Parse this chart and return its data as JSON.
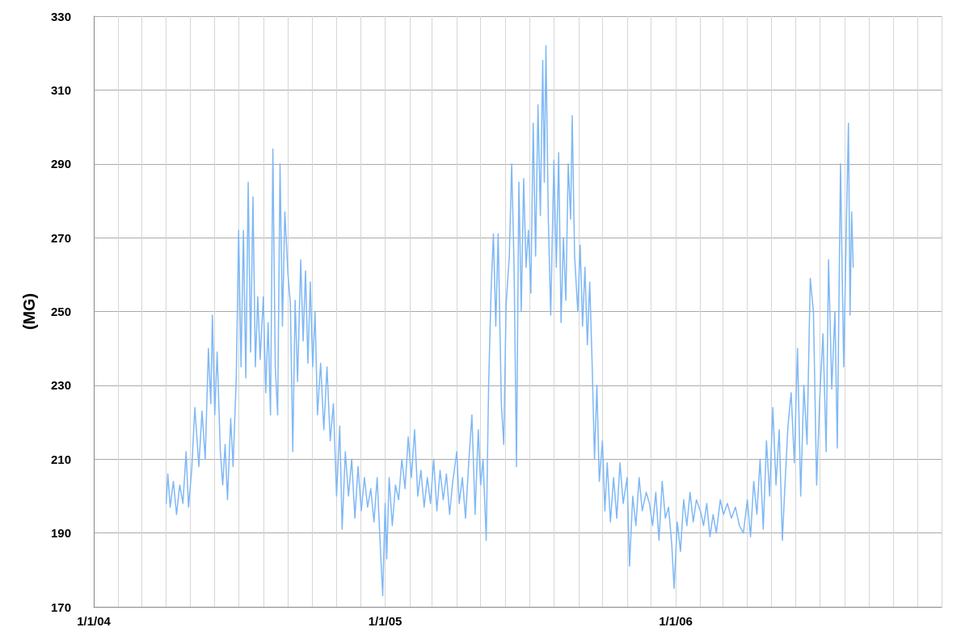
{
  "chart_data": {
    "type": "line",
    "ylabel": "(MG)",
    "marker": "none",
    "line_style": "solid",
    "grid": true,
    "xlim": [
      "2004-01-01",
      "2006-12-01"
    ],
    "xticks": [
      {
        "value": "2004-01-01",
        "label": "1/1/04"
      },
      {
        "value": "2004-02-01",
        "label": null
      },
      {
        "value": "2004-03-01",
        "label": null
      },
      {
        "value": "2004-04-01",
        "label": null
      },
      {
        "value": "2004-05-01",
        "label": null
      },
      {
        "value": "2004-06-01",
        "label": null
      },
      {
        "value": "2004-07-01",
        "label": null
      },
      {
        "value": "2004-08-01",
        "label": null
      },
      {
        "value": "2004-09-01",
        "label": null
      },
      {
        "value": "2004-10-01",
        "label": null
      },
      {
        "value": "2004-11-01",
        "label": null
      },
      {
        "value": "2004-12-01",
        "label": null
      },
      {
        "value": "2005-01-01",
        "label": "1/1/05"
      },
      {
        "value": "2005-02-01",
        "label": null
      },
      {
        "value": "2005-03-01",
        "label": null
      },
      {
        "value": "2005-04-01",
        "label": null
      },
      {
        "value": "2005-05-01",
        "label": null
      },
      {
        "value": "2005-06-01",
        "label": null
      },
      {
        "value": "2005-07-01",
        "label": null
      },
      {
        "value": "2005-08-01",
        "label": null
      },
      {
        "value": "2005-09-01",
        "label": null
      },
      {
        "value": "2005-10-01",
        "label": null
      },
      {
        "value": "2005-11-01",
        "label": null
      },
      {
        "value": "2005-12-01",
        "label": null
      },
      {
        "value": "2006-01-01",
        "label": "1/1/06"
      },
      {
        "value": "2006-02-01",
        "label": null
      },
      {
        "value": "2006-03-01",
        "label": null
      },
      {
        "value": "2006-04-01",
        "label": null
      },
      {
        "value": "2006-05-01",
        "label": null
      },
      {
        "value": "2006-06-01",
        "label": null
      },
      {
        "value": "2006-07-01",
        "label": null
      },
      {
        "value": "2006-08-01",
        "label": null
      },
      {
        "value": "2006-09-01",
        "label": null
      },
      {
        "value": "2006-10-01",
        "label": null
      },
      {
        "value": "2006-11-01",
        "label": null
      },
      {
        "value": "2006-12-01",
        "label": null
      }
    ],
    "ylim": [
      170,
      330
    ],
    "yticks": [
      170,
      190,
      210,
      230,
      250,
      270,
      290,
      310,
      330
    ],
    "series": [
      {
        "color": "#7fb8f5",
        "x": [
          "2004-04-01",
          "2004-04-03",
          "2004-04-06",
          "2004-04-10",
          "2004-04-14",
          "2004-04-18",
          "2004-04-22",
          "2004-04-26",
          "2004-04-29",
          "2004-05-03",
          "2004-05-07",
          "2004-05-12",
          "2004-05-16",
          "2004-05-20",
          "2004-05-24",
          "2004-05-27",
          "2004-05-29",
          "2004-06-01",
          "2004-06-04",
          "2004-06-08",
          "2004-06-11",
          "2004-06-14",
          "2004-06-17",
          "2004-06-21",
          "2004-06-24",
          "2004-06-28",
          "2004-07-01",
          "2004-07-04",
          "2004-07-07",
          "2004-07-10",
          "2004-07-13",
          "2004-07-16",
          "2004-07-19",
          "2004-07-22",
          "2004-07-25",
          "2004-07-28",
          "2004-08-01",
          "2004-08-04",
          "2004-08-07",
          "2004-08-10",
          "2004-08-13",
          "2004-08-16",
          "2004-08-19",
          "2004-08-22",
          "2004-08-25",
          "2004-08-28",
          "2004-09-01",
          "2004-09-04",
          "2004-09-07",
          "2004-09-10",
          "2004-09-13",
          "2004-09-17",
          "2004-09-20",
          "2004-09-23",
          "2004-09-26",
          "2004-09-29",
          "2004-10-02",
          "2004-10-05",
          "2004-10-08",
          "2004-10-12",
          "2004-10-16",
          "2004-10-20",
          "2004-10-24",
          "2004-10-28",
          "2004-11-01",
          "2004-11-05",
          "2004-11-08",
          "2004-11-12",
          "2004-11-16",
          "2004-11-20",
          "2004-11-24",
          "2004-11-28",
          "2004-12-02",
          "2004-12-06",
          "2004-12-10",
          "2004-12-14",
          "2004-12-18",
          "2004-12-22",
          "2004-12-26",
          "2004-12-29",
          "2005-01-01",
          "2005-01-03",
          "2005-01-06",
          "2005-01-10",
          "2005-01-14",
          "2005-01-18",
          "2005-01-22",
          "2005-01-26",
          "2005-01-30",
          "2005-02-03",
          "2005-02-07",
          "2005-02-11",
          "2005-02-15",
          "2005-02-19",
          "2005-02-23",
          "2005-02-27",
          "2005-03-03",
          "2005-03-07",
          "2005-03-11",
          "2005-03-15",
          "2005-03-19",
          "2005-03-23",
          "2005-03-27",
          "2005-04-01",
          "2005-04-04",
          "2005-04-08",
          "2005-04-12",
          "2005-04-16",
          "2005-04-20",
          "2005-04-24",
          "2005-04-28",
          "2005-05-01",
          "2005-05-04",
          "2005-05-08",
          "2005-05-11",
          "2005-05-14",
          "2005-05-17",
          "2005-05-20",
          "2005-05-23",
          "2005-05-27",
          "2005-05-30",
          "2005-06-02",
          "2005-06-06",
          "2005-06-09",
          "2005-06-12",
          "2005-06-15",
          "2005-06-18",
          "2005-06-21",
          "2005-06-24",
          "2005-06-27",
          "2005-06-30",
          "2005-07-03",
          "2005-07-06",
          "2005-07-09",
          "2005-07-12",
          "2005-07-15",
          "2005-07-18",
          "2005-07-20",
          "2005-07-22",
          "2005-07-25",
          "2005-07-28",
          "2005-08-01",
          "2005-08-04",
          "2005-08-07",
          "2005-08-10",
          "2005-08-13",
          "2005-08-16",
          "2005-08-19",
          "2005-08-22",
          "2005-08-24",
          "2005-08-27",
          "2005-08-31",
          "2005-09-03",
          "2005-09-06",
          "2005-09-09",
          "2005-09-12",
          "2005-09-15",
          "2005-09-18",
          "2005-09-21",
          "2005-09-24",
          "2005-09-27",
          "2005-10-01",
          "2005-10-04",
          "2005-10-07",
          "2005-10-11",
          "2005-10-15",
          "2005-10-19",
          "2005-10-23",
          "2005-10-27",
          "2005-11-01",
          "2005-11-04",
          "2005-11-08",
          "2005-11-12",
          "2005-11-16",
          "2005-11-20",
          "2005-11-25",
          "2005-11-29",
          "2005-12-03",
          "2005-12-07",
          "2005-12-11",
          "2005-12-15",
          "2005-12-19",
          "2005-12-23",
          "2005-12-27",
          "2005-12-30",
          "2006-01-03",
          "2006-01-07",
          "2006-01-11",
          "2006-01-15",
          "2006-01-19",
          "2006-01-23",
          "2006-01-27",
          "2006-02-01",
          "2006-02-05",
          "2006-02-09",
          "2006-02-13",
          "2006-02-17",
          "2006-02-21",
          "2006-02-26",
          "2006-03-02",
          "2006-03-07",
          "2006-03-12",
          "2006-03-17",
          "2006-03-22",
          "2006-03-27",
          "2006-04-01",
          "2006-04-05",
          "2006-04-09",
          "2006-04-13",
          "2006-04-17",
          "2006-04-21",
          "2006-04-25",
          "2006-04-29",
          "2006-05-03",
          "2006-05-07",
          "2006-05-11",
          "2006-05-15",
          "2006-05-18",
          "2006-05-22",
          "2006-05-26",
          "2006-05-30",
          "2006-06-03",
          "2006-06-07",
          "2006-06-11",
          "2006-06-15",
          "2006-06-19",
          "2006-06-23",
          "2006-06-27",
          "2006-07-01",
          "2006-07-05",
          "2006-07-09",
          "2006-07-12",
          "2006-07-16",
          "2006-07-20",
          "2006-07-23",
          "2006-07-27",
          "2006-07-31",
          "2006-08-03",
          "2006-08-06",
          "2006-08-08",
          "2006-08-10",
          "2006-08-12"
        ],
        "values": [
          198,
          206,
          197,
          204,
          195,
          203,
          198,
          212,
          197,
          207,
          224,
          208,
          223,
          210,
          240,
          225,
          249,
          222,
          239,
          212,
          203,
          214,
          199,
          221,
          208,
          232,
          272,
          235,
          272,
          232,
          285,
          239,
          281,
          235,
          254,
          237,
          254,
          228,
          247,
          222,
          294,
          235,
          222,
          290,
          246,
          277,
          260,
          252,
          212,
          253,
          231,
          264,
          242,
          261,
          236,
          258,
          235,
          250,
          222,
          236,
          218,
          235,
          215,
          225,
          200,
          219,
          191,
          212,
          200,
          210,
          194,
          208,
          196,
          205,
          197,
          202,
          193,
          205,
          186,
          173,
          198,
          183,
          205,
          192,
          203,
          199,
          210,
          202,
          216,
          205,
          218,
          200,
          207,
          197,
          205,
          198,
          210,
          196,
          207,
          199,
          206,
          195,
          204,
          212,
          198,
          205,
          194,
          209,
          222,
          195,
          218,
          203,
          210,
          188,
          230,
          255,
          271,
          246,
          271,
          225,
          214,
          252,
          265,
          290,
          262,
          208,
          285,
          250,
          286,
          262,
          272,
          255,
          301,
          265,
          306,
          276,
          318,
          285,
          322,
          275,
          249,
          291,
          262,
          293,
          247,
          270,
          253,
          290,
          275,
          303,
          265,
          250,
          268,
          246,
          262,
          241,
          258,
          236,
          210,
          230,
          204,
          215,
          196,
          209,
          193,
          205,
          194,
          209,
          198,
          205,
          181,
          200,
          192,
          205,
          196,
          201,
          198,
          192,
          201,
          188,
          204,
          194,
          197,
          187,
          175,
          193,
          185,
          199,
          192,
          201,
          193,
          199,
          196,
          192,
          198,
          189,
          195,
          190,
          199,
          195,
          198,
          194,
          197,
          192,
          190,
          199,
          189,
          204,
          195,
          210,
          191,
          215,
          200,
          224,
          203,
          218,
          188,
          202,
          219,
          228,
          209,
          240,
          200,
          230,
          214,
          259,
          250,
          203,
          227,
          244,
          212,
          264,
          229,
          250,
          213,
          290,
          235,
          269,
          301,
          249,
          277,
          262
        ]
      }
    ]
  }
}
